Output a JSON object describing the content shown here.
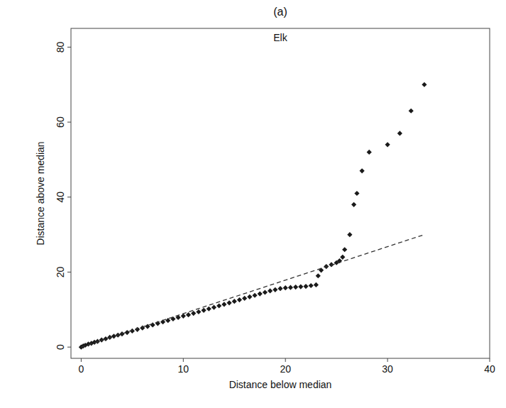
{
  "chart_data": {
    "type": "scatter",
    "title": "(a)",
    "subtitle": "Elk",
    "x_label": "Distance below median",
    "y_label": "Distance above median",
    "xlim": [
      -1,
      40
    ],
    "ylim": [
      -3,
      85
    ],
    "xticks": [
      0,
      10,
      20,
      30,
      40
    ],
    "yticks": [
      0,
      20,
      40,
      60,
      80
    ],
    "grid": false,
    "series": [
      {
        "type": "scatter",
        "color": "#1a1a1a",
        "marker": "diamond",
        "x": [
          0,
          0.2,
          0.4,
          0.7,
          1,
          1.3,
          1.6,
          2,
          2.4,
          2.8,
          3.2,
          3.6,
          4,
          4.5,
          5,
          5.5,
          6,
          6.5,
          7,
          7.5,
          8,
          8.5,
          9,
          9.5,
          10,
          10.5,
          11,
          11.5,
          12,
          12.5,
          13,
          13.5,
          14,
          14.5,
          15,
          15.5,
          16,
          16.5,
          17,
          17.5,
          18,
          18.5,
          19,
          19.5,
          20,
          20.5,
          21,
          21.5,
          22,
          22.5,
          23,
          23.2,
          23.5,
          24,
          24.5,
          25,
          25.3,
          25.6,
          25.8,
          26.3,
          26.7,
          27,
          27.5,
          28.2,
          30,
          31.2,
          32.3,
          33.6
        ],
        "values": [
          0,
          0.3,
          0.5,
          0.8,
          1,
          1.3,
          1.5,
          1.9,
          2.2,
          2.6,
          2.9,
          3.2,
          3.5,
          3.9,
          4.3,
          4.7,
          5.1,
          5.5,
          5.9,
          6.3,
          6.7,
          7.1,
          7.5,
          7.9,
          8.3,
          8.6,
          9,
          9.4,
          9.8,
          10.2,
          10.6,
          11,
          11.4,
          11.8,
          12.2,
          12.6,
          13,
          13.4,
          13.8,
          14.2,
          14.6,
          15,
          15.3,
          15.6,
          15.8,
          15.9,
          16,
          16.1,
          16.2,
          16.4,
          16.6,
          19,
          20.5,
          21.5,
          22,
          22.5,
          23,
          24,
          26,
          30,
          38,
          41,
          47,
          52,
          54,
          57,
          63,
          70
        ]
      },
      {
        "type": "line",
        "color": "#333333",
        "line_style": "dashed",
        "x": [
          0,
          33.6
        ],
        "values": [
          0,
          30
        ]
      }
    ]
  }
}
